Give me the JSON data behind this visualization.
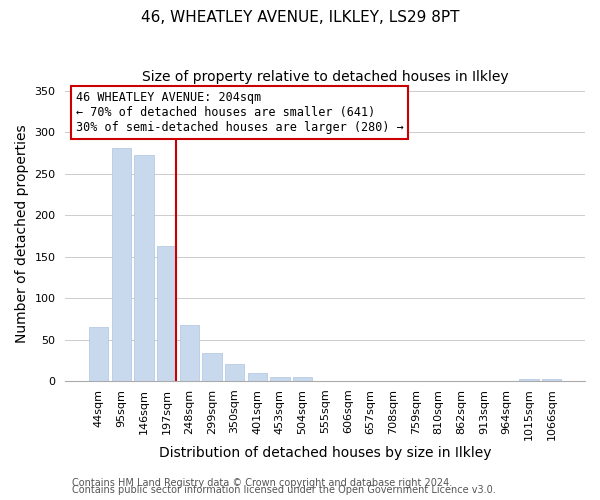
{
  "title": "46, WHEATLEY AVENUE, ILKLEY, LS29 8PT",
  "subtitle": "Size of property relative to detached houses in Ilkley",
  "xlabel": "Distribution of detached houses by size in Ilkley",
  "ylabel": "Number of detached properties",
  "bar_labels": [
    "44sqm",
    "95sqm",
    "146sqm",
    "197sqm",
    "248sqm",
    "299sqm",
    "350sqm",
    "401sqm",
    "453sqm",
    "504sqm",
    "555sqm",
    "606sqm",
    "657sqm",
    "708sqm",
    "759sqm",
    "810sqm",
    "862sqm",
    "913sqm",
    "964sqm",
    "1015sqm",
    "1066sqm"
  ],
  "bar_values": [
    65,
    281,
    273,
    163,
    68,
    34,
    20,
    10,
    5,
    5,
    0,
    0,
    0,
    0,
    0,
    0,
    0,
    0,
    0,
    2,
    2
  ],
  "bar_color": "#c8d9ee",
  "bar_edge_color": "#b0c4de",
  "vline_color": "#cc0000",
  "annotation_text": "46 WHEATLEY AVENUE: 204sqm\n← 70% of detached houses are smaller (641)\n30% of semi-detached houses are larger (280) →",
  "annotation_box_edgecolor": "#cc0000",
  "annotation_box_facecolor": "white",
  "ylim": [
    0,
    355
  ],
  "yticks": [
    0,
    50,
    100,
    150,
    200,
    250,
    300,
    350
  ],
  "grid_color": "#cccccc",
  "footer_line1": "Contains HM Land Registry data © Crown copyright and database right 2024.",
  "footer_line2": "Contains public sector information licensed under the Open Government Licence v3.0.",
  "title_fontsize": 11,
  "subtitle_fontsize": 10,
  "tick_fontsize": 8,
  "label_fontsize": 10,
  "footer_fontsize": 7
}
